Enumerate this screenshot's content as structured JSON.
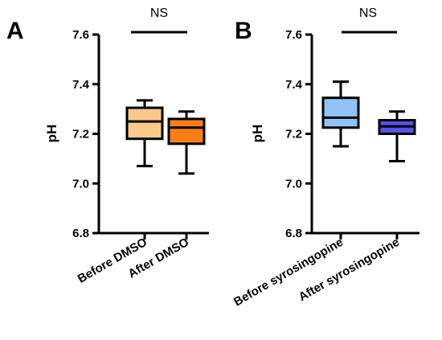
{
  "chart_data": [
    {
      "type": "box",
      "panel_label": "A",
      "ylabel": "pH",
      "ylim": [
        6.8,
        7.6
      ],
      "yticks": [
        "6.8",
        "7.0",
        "7.2",
        "7.4",
        "7.6"
      ],
      "significance": "NS",
      "categories": [
        "Before DMSO",
        "After DMSO"
      ],
      "boxes": [
        {
          "category": "Before DMSO",
          "min": 7.07,
          "q1": 7.18,
          "median": 7.25,
          "q3": 7.305,
          "max": 7.335,
          "color": "#FDC98A"
        },
        {
          "category": "After DMSO",
          "min": 7.04,
          "q1": 7.16,
          "median": 7.225,
          "q3": 7.26,
          "max": 7.29,
          "color": "#FA7F17"
        }
      ]
    },
    {
      "type": "box",
      "panel_label": "B",
      "ylabel": "pH",
      "ylim": [
        6.8,
        7.6
      ],
      "yticks": [
        "6.8",
        "7.0",
        "7.2",
        "7.4",
        "7.6"
      ],
      "significance": "NS",
      "categories": [
        "Before syrosingopine",
        "After syrosingopine"
      ],
      "boxes": [
        {
          "category": "Before syrosingopine",
          "min": 7.15,
          "q1": 7.225,
          "median": 7.265,
          "q3": 7.345,
          "max": 7.41,
          "color": "#92C3F7"
        },
        {
          "category": "After syrosingopine",
          "min": 7.09,
          "q1": 7.2,
          "median": 7.23,
          "q3": 7.255,
          "max": 7.29,
          "color": "#5454E6"
        }
      ]
    }
  ]
}
